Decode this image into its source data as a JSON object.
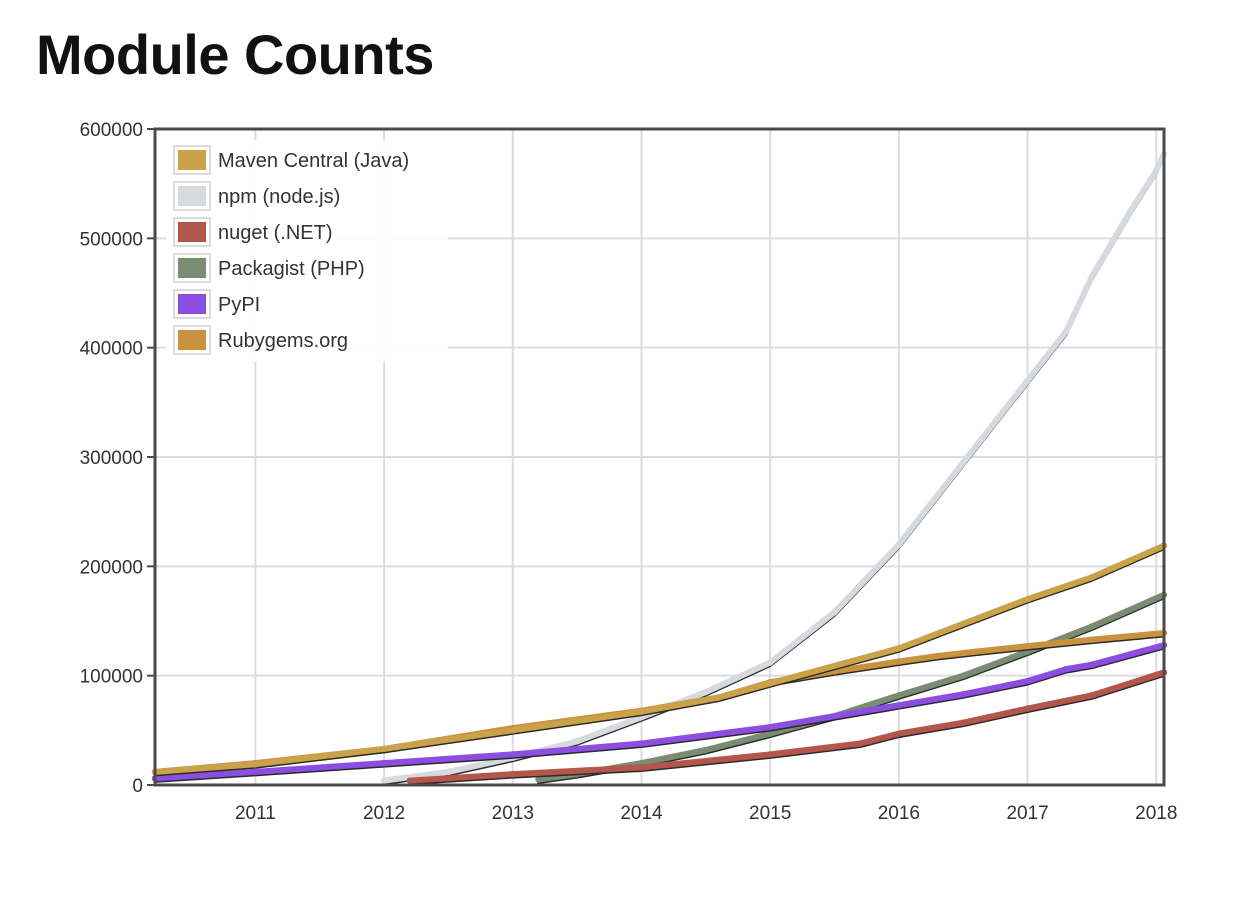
{
  "title": "Module Counts",
  "chart_data": {
    "type": "line",
    "title": "Module Counts",
    "xlabel": "",
    "ylabel": "",
    "xlim": [
      2010.22,
      2018.06
    ],
    "ylim": [
      0,
      600000
    ],
    "grid": true,
    "legend_position": "top-left",
    "x_ticks": [
      2011,
      2012,
      2013,
      2014,
      2015,
      2016,
      2017,
      2018
    ],
    "x_tick_labels": [
      "2011",
      "2012",
      "2013",
      "2014",
      "2015",
      "2016",
      "2017",
      "2018"
    ],
    "y_ticks": [
      0,
      100000,
      200000,
      300000,
      400000,
      500000,
      600000
    ],
    "y_tick_labels": [
      "0",
      "100000",
      "200000",
      "300000",
      "400000",
      "500000",
      "600000"
    ],
    "series": [
      {
        "name": "Maven Central (Java)",
        "color": "#c9a24a",
        "points": [
          [
            2010.22,
            12000
          ],
          [
            2011,
            19000
          ],
          [
            2012,
            33000
          ],
          [
            2013,
            50000
          ],
          [
            2014,
            67000
          ],
          [
            2014.6,
            80000
          ],
          [
            2015,
            93000
          ],
          [
            2016,
            125000
          ],
          [
            2017,
            170000
          ],
          [
            2017.5,
            190000
          ],
          [
            2018.06,
            219000
          ]
        ]
      },
      {
        "name": "npm (node.js)",
        "color": "#d6dadf",
        "points": [
          [
            2012,
            4000
          ],
          [
            2012.5,
            12000
          ],
          [
            2013,
            25000
          ],
          [
            2013.5,
            40000
          ],
          [
            2014,
            62000
          ],
          [
            2014.5,
            85000
          ],
          [
            2015,
            112000
          ],
          [
            2015.5,
            158000
          ],
          [
            2016,
            220000
          ],
          [
            2016.5,
            295000
          ],
          [
            2017,
            370000
          ],
          [
            2017.3,
            415000
          ],
          [
            2017.5,
            465000
          ],
          [
            2017.8,
            525000
          ],
          [
            2018,
            562000
          ],
          [
            2018.06,
            577000
          ]
        ]
      },
      {
        "name": "nuget (.NET)",
        "color": "#b3574d",
        "points": [
          [
            2012.2,
            4000
          ],
          [
            2013,
            10000
          ],
          [
            2014,
            16000
          ],
          [
            2015,
            28000
          ],
          [
            2015.7,
            38000
          ],
          [
            2016,
            47000
          ],
          [
            2016.5,
            57000
          ],
          [
            2017,
            70000
          ],
          [
            2017.5,
            82000
          ],
          [
            2018.06,
            103000
          ]
        ]
      },
      {
        "name": "Packagist (PHP)",
        "color": "#7a8c72",
        "points": [
          [
            2013.2,
            5000
          ],
          [
            2013.5,
            10000
          ],
          [
            2014,
            20000
          ],
          [
            2014.5,
            32000
          ],
          [
            2015,
            47000
          ],
          [
            2015.5,
            63000
          ],
          [
            2016,
            82000
          ],
          [
            2016.5,
            100000
          ],
          [
            2017,
            122000
          ],
          [
            2017.5,
            145000
          ],
          [
            2018.06,
            174000
          ]
        ]
      },
      {
        "name": "PyPI",
        "color": "#8b4ee0",
        "points": [
          [
            2010.22,
            6000
          ],
          [
            2011,
            12000
          ],
          [
            2012,
            20000
          ],
          [
            2013,
            28000
          ],
          [
            2014,
            38000
          ],
          [
            2015,
            53000
          ],
          [
            2016,
            73000
          ],
          [
            2016.5,
            83000
          ],
          [
            2017,
            95000
          ],
          [
            2017.3,
            106000
          ],
          [
            2017.5,
            110000
          ],
          [
            2018.06,
            128000
          ]
        ]
      },
      {
        "name": "Rubygems.org",
        "color": "#c8923e",
        "points": [
          [
            2010.22,
            12000
          ],
          [
            2011,
            20000
          ],
          [
            2012,
            33000
          ],
          [
            2013,
            52000
          ],
          [
            2014,
            68000
          ],
          [
            2014.6,
            80000
          ],
          [
            2015,
            94000
          ],
          [
            2015.5,
            104000
          ],
          [
            2016,
            113000
          ],
          [
            2016.3,
            118000
          ],
          [
            2016.6,
            122000
          ],
          [
            2017,
            127000
          ],
          [
            2017.5,
            133000
          ],
          [
            2018.06,
            139000
          ]
        ]
      }
    ]
  }
}
